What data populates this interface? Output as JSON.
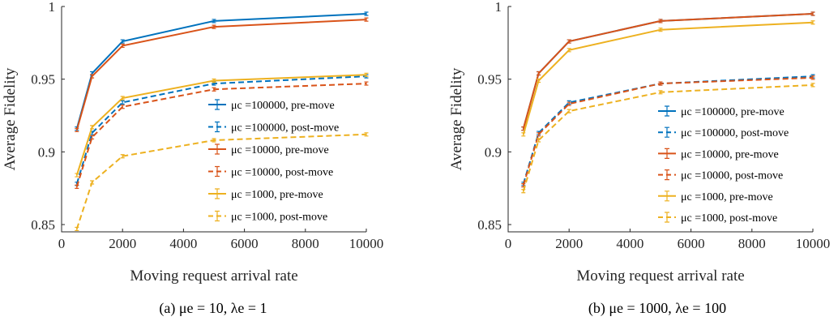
{
  "chart_data": [
    {
      "type": "line",
      "caption": "(a) μe = 10,  λe = 1",
      "xlabel": "Moving request arrival rate",
      "ylabel": "Average Fidelity",
      "xlim": [
        0,
        10000
      ],
      "ylim": [
        0.845,
        1.0
      ],
      "xticks": [
        0,
        2000,
        4000,
        6000,
        8000,
        10000
      ],
      "xtick_labels": [
        "0",
        "2000",
        "4000",
        "6000",
        "8000",
        "10000"
      ],
      "yticks": [
        0.85,
        0.9,
        0.95,
        1.0
      ],
      "ytick_labels": [
        "0.85",
        "0.9",
        "0.95",
        "1"
      ],
      "grid": false,
      "legend_position": "center-right",
      "x": [
        500,
        1000,
        2000,
        5000,
        10000
      ],
      "series": [
        {
          "name": "μc =100000, pre-move",
          "color": "#0072BD",
          "dash": "solid",
          "values": [
            0.916,
            0.954,
            0.976,
            0.99,
            0.995
          ]
        },
        {
          "name": "μc =100000, post-move",
          "color": "#0072BD",
          "dash": "dashed",
          "values": [
            0.878,
            0.913,
            0.934,
            0.947,
            0.952
          ]
        },
        {
          "name": "μc =10000, pre-move",
          "color": "#D95319",
          "dash": "solid",
          "values": [
            0.915,
            0.952,
            0.973,
            0.986,
            0.991
          ]
        },
        {
          "name": "μc =10000, post-move",
          "color": "#D95319",
          "dash": "dashed",
          "values": [
            0.876,
            0.91,
            0.931,
            0.943,
            0.947
          ]
        },
        {
          "name": "μc =1000, pre-move",
          "color": "#EDB120",
          "dash": "solid",
          "values": [
            0.884,
            0.917,
            0.937,
            0.949,
            0.953
          ]
        },
        {
          "name": "μc =1000, post-move",
          "color": "#EDB120",
          "dash": "dashed",
          "values": [
            0.847,
            0.879,
            0.897,
            0.908,
            0.912
          ]
        }
      ]
    },
    {
      "type": "line",
      "caption": "(b) μe = 1000,  λe = 100",
      "xlabel": "Moving request arrival rate",
      "ylabel": "Average Fidelity",
      "xlim": [
        0,
        10000
      ],
      "ylim": [
        0.845,
        1.0
      ],
      "xticks": [
        0,
        2000,
        4000,
        6000,
        8000,
        10000
      ],
      "xtick_labels": [
        "0",
        "2000",
        "4000",
        "6000",
        "8000",
        "10000"
      ],
      "yticks": [
        0.85,
        0.9,
        0.95,
        1.0
      ],
      "ytick_labels": [
        "0.85",
        "0.9",
        "0.95",
        "1"
      ],
      "grid": false,
      "legend_position": "center-right",
      "x": [
        500,
        1000,
        2000,
        5000,
        10000
      ],
      "series": [
        {
          "name": "μc =100000, pre-move",
          "color": "#0072BD",
          "dash": "solid",
          "values": [
            0.916,
            0.954,
            0.976,
            0.99,
            0.995
          ]
        },
        {
          "name": "μc =100000, post-move",
          "color": "#0072BD",
          "dash": "dashed",
          "values": [
            0.878,
            0.913,
            0.934,
            0.947,
            0.952
          ]
        },
        {
          "name": "μc =10000, pre-move",
          "color": "#D95319",
          "dash": "solid",
          "values": [
            0.916,
            0.954,
            0.976,
            0.99,
            0.995
          ]
        },
        {
          "name": "μc =10000, post-move",
          "color": "#D95319",
          "dash": "dashed",
          "values": [
            0.877,
            0.912,
            0.933,
            0.947,
            0.951
          ]
        },
        {
          "name": "μc =1000, pre-move",
          "color": "#EDB120",
          "dash": "solid",
          "values": [
            0.912,
            0.949,
            0.97,
            0.984,
            0.989
          ]
        },
        {
          "name": "μc =1000, post-move",
          "color": "#EDB120",
          "dash": "dashed",
          "values": [
            0.873,
            0.908,
            0.928,
            0.941,
            0.946
          ]
        }
      ]
    }
  ]
}
